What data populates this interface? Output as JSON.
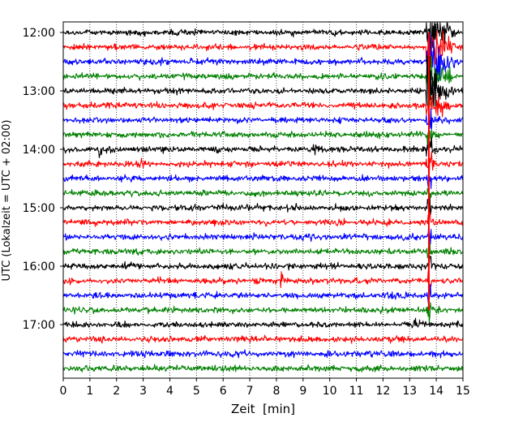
{
  "chart_data": {
    "type": "line",
    "title": "",
    "xlabel": "Zeit  [min]",
    "ylabel": "UTC (Lokalzeit = UTC + 02:00)",
    "xlim": [
      0,
      15
    ],
    "x_ticks": [
      0,
      1,
      2,
      3,
      4,
      5,
      6,
      7,
      8,
      9,
      10,
      11,
      12,
      13,
      14,
      15
    ],
    "y_ticks": [
      "12:00",
      "13:00",
      "14:00",
      "15:00",
      "16:00",
      "17:00"
    ],
    "trace_interval_min": 15,
    "trace_start": "12:00",
    "trace_count": 24,
    "trace_colors": [
      "#000000",
      "#ff0000",
      "#0000ff",
      "#008000"
    ],
    "grid_x": true,
    "grid_style": "dotted",
    "grid_color": "#000000",
    "background": "#ffffff",
    "event": {
      "onset_min": 13.7,
      "start_trace": 0,
      "end_trace": 19,
      "peak_trace": 4
    },
    "spikes": [
      {
        "trace": 8,
        "x": 1.35,
        "amp": 0.5
      },
      {
        "trace": 8,
        "x": 9.45,
        "amp": 0.4
      },
      {
        "trace": 17,
        "x": 8.2,
        "amp": 0.55
      },
      {
        "trace": 0,
        "x": 4.1,
        "amp": 0.3
      },
      {
        "trace": 12,
        "x": 6.0,
        "amp": 0.3
      },
      {
        "trace": 13,
        "x": 10.5,
        "amp": 0.3
      },
      {
        "trace": 20,
        "x": 13.2,
        "amp": 0.35
      },
      {
        "trace": 9,
        "x": 2.9,
        "amp": 0.25
      },
      {
        "trace": 16,
        "x": 2.4,
        "amp": 0.25
      },
      {
        "trace": 22,
        "x": 3.9,
        "amp": 0.25
      }
    ]
  }
}
